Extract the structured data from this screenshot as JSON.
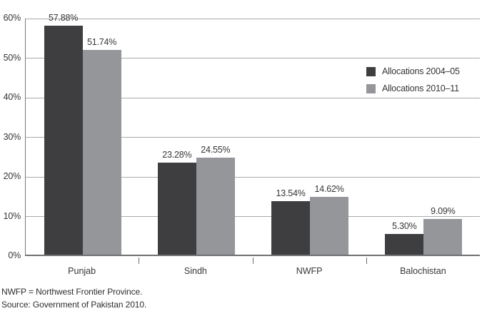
{
  "chart_data": {
    "type": "bar",
    "title": "",
    "xlabel": "",
    "ylabel": "",
    "categories": [
      "Punjab",
      "Sindh",
      "NWFP",
      "Balochistan"
    ],
    "series": [
      {
        "name": "Allocations 2004–05",
        "color": "#3e3e40",
        "values": [
          57.88,
          23.28,
          13.54,
          5.3
        ],
        "value_labels": [
          "57.88%",
          "23.28%",
          "13.54%",
          "5.30%"
        ]
      },
      {
        "name": "Allocations 2010–11",
        "color": "#95969a",
        "values": [
          51.74,
          24.55,
          14.62,
          9.09
        ],
        "value_labels": [
          "51.74%",
          "24.55%",
          "14.62%",
          "9.09%"
        ]
      }
    ],
    "ylim": [
      0,
      60
    ],
    "y_ticks": [
      {
        "value": 0,
        "label": "0%"
      },
      {
        "value": 10,
        "label": "10%"
      },
      {
        "value": 20,
        "label": "20%"
      },
      {
        "value": 30,
        "label": "30%"
      },
      {
        "value": 40,
        "label": "40%"
      },
      {
        "value": 50,
        "label": "50%"
      },
      {
        "value": 60,
        "label": "60%"
      }
    ],
    "grid": true,
    "legend_position": "inside-top-right"
  },
  "notes": {
    "abbreviation": "NWFP = Northwest Frontier Province.",
    "source": "Source: Government of Pakistan 2010."
  },
  "colors": {
    "series1": "#3e3e40",
    "series2": "#95969a",
    "gridline": "#a8aaad",
    "axis": "#6f7073",
    "text": "#363639",
    "background": "#ffffff"
  }
}
